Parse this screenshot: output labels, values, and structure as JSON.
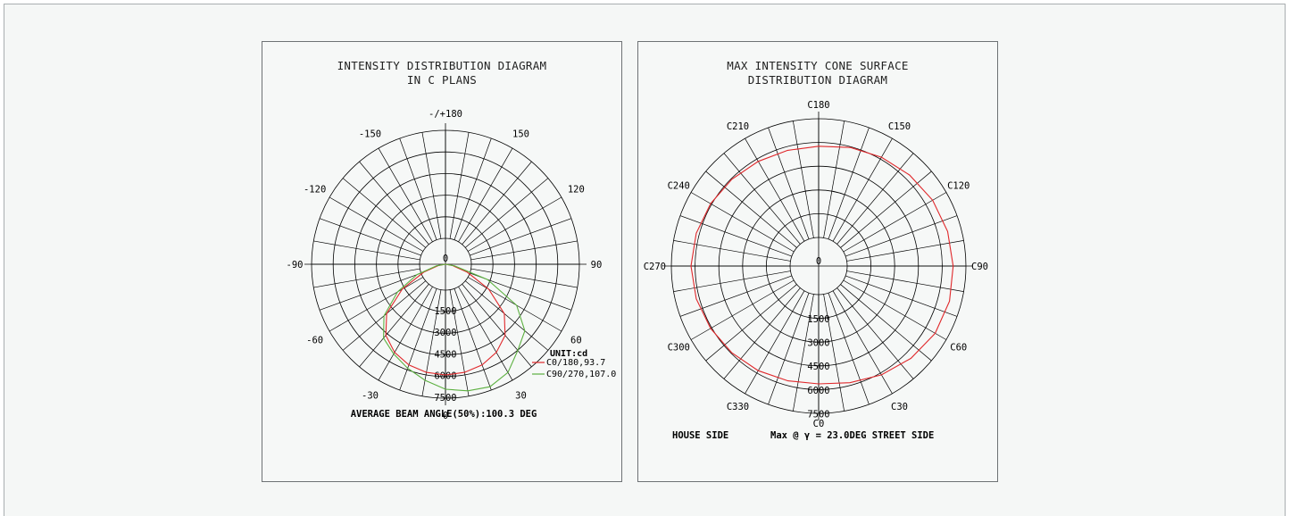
{
  "colors": {
    "red": "#e0282b",
    "green": "#5cb040",
    "grid": "#000000",
    "background": "#f5f7f6"
  },
  "left_panel": {
    "title_line1": "INTENSITY DISTRIBUTION DIAGRAM",
    "title_line2": "IN C PLANS",
    "footer": "AVERAGE BEAM ANGLE(50%):100.3 DEG",
    "unit": "UNIT:cd"
  },
  "right_panel": {
    "title_line1": "MAX INTENSITY CONE SURFACE",
    "title_line2": "DISTRIBUTION DIAGRAM",
    "footer_left": "HOUSE SIDE",
    "footer_mid": "Max @ γ = 23.0DEG STREET SIDE"
  },
  "chart_data": [
    {
      "type": "polar",
      "title": "INTENSITY DISTRIBUTION DIAGRAM IN C PLANS",
      "unit": "cd",
      "angle_labels": [
        "-/+180",
        "150",
        "120",
        "90",
        "60",
        "30",
        "0",
        "-30",
        "-60",
        "-90",
        "-120",
        "-150"
      ],
      "radial_ticks": [
        0,
        1500,
        3000,
        4500,
        6000,
        7500
      ],
      "radial_labels": [
        "0",
        "1500",
        "3000",
        "4500",
        "6000",
        "7500"
      ],
      "rmax": 7500,
      "series": [
        {
          "name": "C0/180,93.7",
          "color": "red",
          "angles_deg": [
            -90,
            -80,
            -70,
            -60,
            -50,
            -40,
            -30,
            -20,
            -10,
            0,
            10,
            20,
            30,
            40,
            50,
            60,
            70,
            80,
            90
          ],
          "values": [
            0,
            380,
            1300,
            2800,
            4300,
            5200,
            5700,
            6000,
            6150,
            6200,
            6150,
            6000,
            5700,
            5200,
            4300,
            2800,
            1300,
            380,
            0
          ]
        },
        {
          "name": "C90/270,107.0",
          "color": "green",
          "angles_deg": [
            -90,
            -80,
            -70,
            -60,
            -50,
            -40,
            -30,
            -20,
            -10,
            0,
            10,
            20,
            30,
            40,
            50,
            60,
            70,
            80,
            90
          ],
          "values": [
            0,
            500,
            1700,
            3100,
            4500,
            5400,
            5800,
            6200,
            6600,
            7000,
            7200,
            7300,
            7000,
            6300,
            5800,
            4600,
            2500,
            500,
            0
          ]
        }
      ],
      "footer": "AVERAGE BEAM ANGLE(50%):100.3 DEG"
    },
    {
      "type": "polar",
      "title": "MAX INTENSITY CONE SURFACE DISTRIBUTION DIAGRAM",
      "angle_labels": [
        "C0",
        "C30",
        "C60",
        "C90",
        "C120",
        "C150",
        "C180",
        "C210",
        "C240",
        "C270",
        "C300",
        "C330"
      ],
      "radial_ticks": [
        0,
        1500,
        3000,
        4500,
        6000,
        7500
      ],
      "radial_labels": [
        "0",
        "1500",
        "3000",
        "4500",
        "6000",
        "7500"
      ],
      "rmax": 7500,
      "series": [
        {
          "name": "Max @ γ = 23.0DEG",
          "color": "red",
          "angles_deg": [
            0,
            15,
            30,
            45,
            60,
            75,
            90,
            105,
            120,
            135,
            150,
            165,
            180,
            195,
            210,
            225,
            240,
            255,
            270,
            285,
            300,
            315,
            330,
            345
          ],
          "values": [
            6000,
            6150,
            6400,
            6650,
            6850,
            6900,
            6850,
            6800,
            6700,
            6550,
            6400,
            6250,
            6100,
            6100,
            6150,
            6250,
            6350,
            6450,
            6500,
            6450,
            6350,
            6250,
            6150,
            6050
          ]
        }
      ],
      "footer": "HOUSE SIDE Max @ γ = 23.0DEG STREET SIDE"
    }
  ]
}
